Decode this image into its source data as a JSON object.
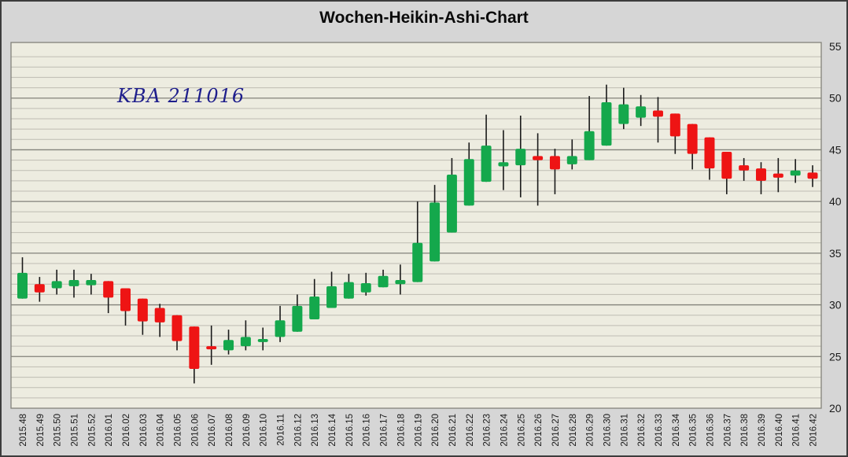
{
  "window_title": "Wochen-Heikin-Ashi-Chart",
  "annotation": {
    "text": "KBA 211016",
    "color": "#1e1e8c"
  },
  "colors": {
    "outer_background": "#d6d6d6",
    "plot_background": "#edece0",
    "minor_gridline": "#bebdb3",
    "major_gridline": "#82827a",
    "wick": "#1a1a1a",
    "axis_text": "#1a1a1a"
  },
  "chart_data": {
    "type": "candlestick",
    "subtype": "heikin-ashi-weekly",
    "title": "Wochen-Heikin-Ashi-Chart",
    "up_color": "#14a84c",
    "down_color": "#ee1414",
    "legend": "none",
    "grid": "horizontal-only",
    "y_axis": {
      "side": "right",
      "min": 20,
      "max": 55,
      "major_tick": 5,
      "minor_tick": 1,
      "tick_labels": [
        55,
        50,
        45,
        40,
        35,
        30,
        25,
        20
      ]
    },
    "x_axis": {
      "label_rotation": -90
    },
    "categories": [
      "2015.48",
      "2015.49",
      "2015.50",
      "2015.51",
      "2015.52",
      "2016.01",
      "2016.02",
      "2016.03",
      "2016.04",
      "2016.05",
      "2016.06",
      "2016.07",
      "2016.08",
      "2016.09",
      "2016.10",
      "2016.11",
      "2016.12",
      "2016.13",
      "2016.14",
      "2016.15",
      "2016.16",
      "2016.17",
      "2016.18",
      "2016.19",
      "2016.20",
      "2016.21",
      "2016.22",
      "2016.23",
      "2016.24",
      "2016.25",
      "2016.26",
      "2016.27",
      "2016.28",
      "2016.29",
      "2016.30",
      "2016.31",
      "2016.32",
      "2016.33",
      "2016.34",
      "2016.35",
      "2016.36",
      "2016.37",
      "2016.38",
      "2016.39",
      "2016.40",
      "2016.41",
      "2016.42"
    ],
    "candles": [
      {
        "week": "2015.48",
        "open": 30.6,
        "high": 34.6,
        "low": 30.6,
        "close": 33.1
      },
      {
        "week": "2015.49",
        "open": 32.0,
        "high": 32.7,
        "low": 30.3,
        "close": 31.2
      },
      {
        "week": "2015.50",
        "open": 31.6,
        "high": 33.4,
        "low": 31.0,
        "close": 32.3
      },
      {
        "week": "2015.51",
        "open": 31.8,
        "high": 33.4,
        "low": 30.7,
        "close": 32.4
      },
      {
        "week": "2015.52",
        "open": 31.9,
        "high": 33.0,
        "low": 31.0,
        "close": 32.4
      },
      {
        "week": "2016.01",
        "open": 32.3,
        "high": 32.3,
        "low": 29.2,
        "close": 30.7
      },
      {
        "week": "2016.02",
        "open": 31.6,
        "high": 31.6,
        "low": 28.0,
        "close": 29.4
      },
      {
        "week": "2016.03",
        "open": 30.6,
        "high": 30.6,
        "low": 27.1,
        "close": 28.4
      },
      {
        "week": "2016.04",
        "open": 29.7,
        "high": 30.1,
        "low": 26.9,
        "close": 28.3
      },
      {
        "week": "2016.05",
        "open": 29.0,
        "high": 29.0,
        "low": 25.6,
        "close": 26.5
      },
      {
        "week": "2016.06",
        "open": 27.9,
        "high": 27.9,
        "low": 22.4,
        "close": 23.8
      },
      {
        "week": "2016.07",
        "open": 26.0,
        "high": 28.0,
        "low": 24.2,
        "close": 25.7
      },
      {
        "week": "2016.08",
        "open": 25.6,
        "high": 27.6,
        "low": 25.2,
        "close": 26.6
      },
      {
        "week": "2016.09",
        "open": 26.0,
        "high": 28.5,
        "low": 25.6,
        "close": 26.9
      },
      {
        "week": "2016.10",
        "open": 26.4,
        "high": 27.8,
        "low": 25.6,
        "close": 26.7
      },
      {
        "week": "2016.11",
        "open": 26.9,
        "high": 29.9,
        "low": 26.4,
        "close": 28.5
      },
      {
        "week": "2016.12",
        "open": 27.4,
        "high": 31.0,
        "low": 27.4,
        "close": 29.9
      },
      {
        "week": "2016.13",
        "open": 28.6,
        "high": 32.5,
        "low": 28.6,
        "close": 30.8
      },
      {
        "week": "2016.14",
        "open": 29.7,
        "high": 33.2,
        "low": 29.7,
        "close": 31.8
      },
      {
        "week": "2016.15",
        "open": 30.6,
        "high": 33.0,
        "low": 30.6,
        "close": 32.2
      },
      {
        "week": "2016.16",
        "open": 31.2,
        "high": 33.1,
        "low": 30.9,
        "close": 32.1
      },
      {
        "week": "2016.17",
        "open": 31.7,
        "high": 33.4,
        "low": 31.7,
        "close": 32.8
      },
      {
        "week": "2016.18",
        "open": 32.0,
        "high": 33.9,
        "low": 31.0,
        "close": 32.4
      },
      {
        "week": "2016.19",
        "open": 32.2,
        "high": 40.0,
        "low": 32.2,
        "close": 36.0
      },
      {
        "week": "2016.20",
        "open": 34.2,
        "high": 41.6,
        "low": 34.2,
        "close": 39.9
      },
      {
        "week": "2016.21",
        "open": 37.0,
        "high": 44.2,
        "low": 37.0,
        "close": 42.6
      },
      {
        "week": "2016.22",
        "open": 39.6,
        "high": 45.7,
        "low": 39.6,
        "close": 44.1
      },
      {
        "week": "2016.23",
        "open": 41.9,
        "high": 48.4,
        "low": 41.9,
        "close": 45.4
      },
      {
        "week": "2016.24",
        "open": 43.4,
        "high": 46.9,
        "low": 41.1,
        "close": 43.8
      },
      {
        "week": "2016.25",
        "open": 43.5,
        "high": 48.3,
        "low": 40.4,
        "close": 45.1
      },
      {
        "week": "2016.26",
        "open": 44.4,
        "high": 46.6,
        "low": 39.6,
        "close": 44.0
      },
      {
        "week": "2016.27",
        "open": 44.4,
        "high": 45.1,
        "low": 40.7,
        "close": 43.1
      },
      {
        "week": "2016.28",
        "open": 43.6,
        "high": 46.0,
        "low": 43.1,
        "close": 44.4
      },
      {
        "week": "2016.29",
        "open": 44.0,
        "high": 50.2,
        "low": 44.0,
        "close": 46.8
      },
      {
        "week": "2016.30",
        "open": 45.4,
        "high": 51.3,
        "low": 45.4,
        "close": 49.6
      },
      {
        "week": "2016.31",
        "open": 47.5,
        "high": 51.0,
        "low": 47.0,
        "close": 49.4
      },
      {
        "week": "2016.32",
        "open": 48.1,
        "high": 50.3,
        "low": 47.3,
        "close": 49.2
      },
      {
        "week": "2016.33",
        "open": 48.8,
        "high": 50.1,
        "low": 45.7,
        "close": 48.2
      },
      {
        "week": "2016.34",
        "open": 48.5,
        "high": 48.5,
        "low": 44.6,
        "close": 46.3
      },
      {
        "week": "2016.35",
        "open": 47.5,
        "high": 47.5,
        "low": 43.1,
        "close": 44.6
      },
      {
        "week": "2016.36",
        "open": 46.2,
        "high": 46.2,
        "low": 42.1,
        "close": 43.2
      },
      {
        "week": "2016.37",
        "open": 44.8,
        "high": 44.8,
        "low": 40.7,
        "close": 42.2
      },
      {
        "week": "2016.38",
        "open": 43.5,
        "high": 44.2,
        "low": 42.0,
        "close": 43.0
      },
      {
        "week": "2016.39",
        "open": 43.2,
        "high": 43.8,
        "low": 40.7,
        "close": 42.0
      },
      {
        "week": "2016.40",
        "open": 42.7,
        "high": 44.2,
        "low": 40.9,
        "close": 42.3
      },
      {
        "week": "2016.41",
        "open": 42.5,
        "high": 44.1,
        "low": 41.8,
        "close": 43.0
      },
      {
        "week": "2016.42",
        "open": 42.8,
        "high": 43.5,
        "low": 41.4,
        "close": 42.2
      }
    ]
  }
}
